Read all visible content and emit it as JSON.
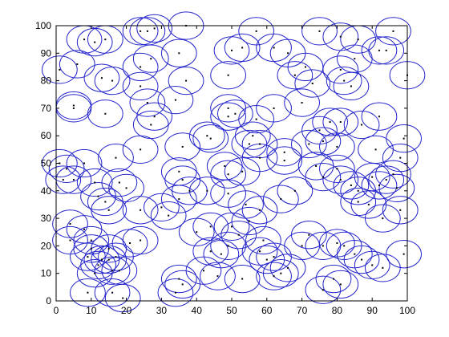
{
  "chart_data": {
    "type": "scatter",
    "title": "",
    "xlabel": "",
    "ylabel": "",
    "xlim": [
      0,
      100
    ],
    "ylim": [
      0,
      100
    ],
    "x_ticks": [
      0,
      10,
      20,
      30,
      40,
      50,
      60,
      70,
      80,
      90,
      100
    ],
    "y_ticks": [
      0,
      10,
      20,
      30,
      40,
      50,
      60,
      70,
      80,
      90,
      100
    ],
    "grid": false,
    "marker_color": "#000000",
    "circle_color": "#2222cc",
    "circle_radius": 5,
    "axis_color": "#000000",
    "points": [
      [
        1,
        84
      ],
      [
        6,
        86
      ],
      [
        8,
        95
      ],
      [
        11,
        94
      ],
      [
        14,
        95
      ],
      [
        13,
        81
      ],
      [
        16,
        80
      ],
      [
        24,
        98
      ],
      [
        26,
        98
      ],
      [
        28,
        99
      ],
      [
        37,
        100
      ],
      [
        27,
        88
      ],
      [
        24,
        85
      ],
      [
        35,
        90
      ],
      [
        37,
        80
      ],
      [
        24,
        78
      ],
      [
        26,
        72
      ],
      [
        34,
        73
      ],
      [
        50,
        91
      ],
      [
        53,
        92
      ],
      [
        57,
        98
      ],
      [
        62,
        92
      ],
      [
        66,
        90
      ],
      [
        75,
        98
      ],
      [
        81,
        96
      ],
      [
        86,
        95
      ],
      [
        96,
        98
      ],
      [
        92,
        91
      ],
      [
        94,
        91
      ],
      [
        85,
        88
      ],
      [
        81,
        84
      ],
      [
        82,
        80
      ],
      [
        84,
        78
      ],
      [
        68,
        82
      ],
      [
        71,
        85
      ],
      [
        73,
        79
      ],
      [
        70,
        72
      ],
      [
        62,
        70
      ],
      [
        49,
        82
      ],
      [
        100,
        82
      ],
      [
        5,
        71
      ],
      [
        5,
        70
      ],
      [
        14,
        68
      ],
      [
        28,
        67
      ],
      [
        27,
        64
      ],
      [
        24,
        55
      ],
      [
        36,
        56
      ],
      [
        43,
        60
      ],
      [
        44,
        59
      ],
      [
        49,
        70
      ],
      [
        49,
        67
      ],
      [
        51,
        68
      ],
      [
        57,
        66
      ],
      [
        56,
        60
      ],
      [
        55,
        57
      ],
      [
        58,
        57
      ],
      [
        58,
        52
      ],
      [
        65,
        54
      ],
      [
        65,
        51
      ],
      [
        72,
        57
      ],
      [
        75,
        62
      ],
      [
        78,
        65
      ],
      [
        81,
        65
      ],
      [
        76,
        58
      ],
      [
        80,
        56
      ],
      [
        87,
        64
      ],
      [
        92,
        67
      ],
      [
        91,
        55
      ],
      [
        98,
        52
      ],
      [
        99,
        59
      ],
      [
        1,
        50
      ],
      [
        3,
        48
      ],
      [
        8,
        50
      ],
      [
        2,
        44
      ],
      [
        5,
        44
      ],
      [
        11,
        43
      ],
      [
        17,
        52
      ],
      [
        18,
        43
      ],
      [
        20,
        41
      ],
      [
        12,
        38
      ],
      [
        14,
        36
      ],
      [
        15,
        33
      ],
      [
        24,
        33
      ],
      [
        30,
        34
      ],
      [
        35,
        37
      ],
      [
        35,
        47
      ],
      [
        36,
        44
      ],
      [
        38,
        40
      ],
      [
        43,
        40
      ],
      [
        48,
        49
      ],
      [
        49,
        39
      ],
      [
        49,
        46
      ],
      [
        53,
        47
      ],
      [
        54,
        35
      ],
      [
        58,
        33
      ],
      [
        64,
        37
      ],
      [
        68,
        40
      ],
      [
        76,
        45
      ],
      [
        74,
        49
      ],
      [
        80,
        48
      ],
      [
        81,
        44
      ],
      [
        84,
        42
      ],
      [
        86,
        40
      ],
      [
        90,
        45
      ],
      [
        92,
        42
      ],
      [
        94,
        44
      ],
      [
        96,
        46
      ],
      [
        97,
        41
      ],
      [
        86,
        36
      ],
      [
        89,
        35
      ],
      [
        98,
        33
      ],
      [
        93,
        30
      ],
      [
        4,
        28
      ],
      [
        4,
        22
      ],
      [
        8,
        26
      ],
      [
        9,
        16
      ],
      [
        10,
        19
      ],
      [
        10,
        22
      ],
      [
        12,
        13
      ],
      [
        13,
        15
      ],
      [
        15,
        19
      ],
      [
        15,
        15
      ],
      [
        16,
        11
      ],
      [
        17,
        16
      ],
      [
        18,
        11
      ],
      [
        21,
        21
      ],
      [
        24,
        22
      ],
      [
        32,
        31
      ],
      [
        40,
        25
      ],
      [
        44,
        27
      ],
      [
        44,
        18
      ],
      [
        47,
        17
      ],
      [
        49,
        20
      ],
      [
        50,
        27
      ],
      [
        52,
        24
      ],
      [
        55,
        29
      ],
      [
        59,
        22
      ],
      [
        58,
        18
      ],
      [
        62,
        16
      ],
      [
        62,
        9
      ],
      [
        66,
        12
      ],
      [
        70,
        20
      ],
      [
        72,
        24
      ],
      [
        76,
        20
      ],
      [
        80,
        21
      ],
      [
        82,
        20
      ],
      [
        85,
        17
      ],
      [
        87,
        15
      ],
      [
        90,
        13
      ],
      [
        93,
        12
      ],
      [
        99,
        17
      ],
      [
        9,
        3
      ],
      [
        11,
        10
      ],
      [
        16,
        3
      ],
      [
        19,
        1
      ],
      [
        34,
        3
      ],
      [
        35,
        8
      ],
      [
        36,
        6
      ],
      [
        42,
        11
      ],
      [
        46,
        9
      ],
      [
        53,
        8
      ],
      [
        60,
        15
      ],
      [
        64,
        10
      ],
      [
        76,
        4
      ],
      [
        79,
        8
      ],
      [
        81,
        6
      ]
    ]
  },
  "axes": {
    "x_tick_labels": [
      "0",
      "10",
      "20",
      "30",
      "40",
      "50",
      "60",
      "70",
      "80",
      "90",
      "100"
    ],
    "y_tick_labels": [
      "0",
      "10",
      "20",
      "30",
      "40",
      "50",
      "60",
      "70",
      "80",
      "90",
      "100"
    ]
  }
}
